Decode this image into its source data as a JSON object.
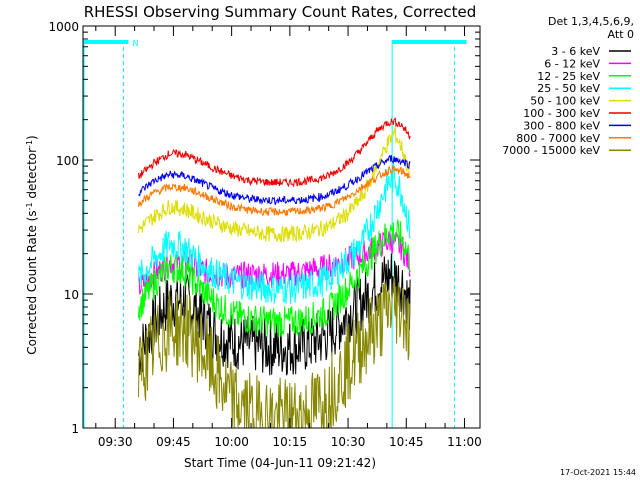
{
  "chart_data": {
    "type": "line",
    "title": "RHESSI Observing Summary Count Rates, Corrected",
    "xlabel": "Start Time (04-Jun-11 09:21:42)",
    "ylabel_main": "Corrected Count Rate (s",
    "ylabel_sup1": "-1",
    "ylabel_mid": " detector",
    "ylabel_sup2": "-1",
    "ylabel_end": ")",
    "yscale": "log",
    "xlim": [
      "09:21:42",
      "11:04:00"
    ],
    "ylim": [
      1,
      1000
    ],
    "x_ticks": [
      "09:30",
      "09:45",
      "10:00",
      "10:15",
      "10:30",
      "10:45",
      "11:00"
    ],
    "y_ticks": [
      "1",
      "10",
      "100",
      "1000"
    ],
    "legend_header": [
      "Det 1,3,4,5,6,9,",
      "Att 0"
    ],
    "legend_position": "right",
    "timestamp": "17-Oct-2021 15:44",
    "night_marker": "N",
    "data_start": "09:36:00",
    "data_end": "10:46:00",
    "series": [
      {
        "name": "3 - 6 keV",
        "color": "#000000",
        "x": [
          "09:36",
          "09:40",
          "09:44",
          "09:48",
          "09:52",
          "09:56",
          "10:00",
          "10:05",
          "10:10",
          "10:15",
          "10:20",
          "10:25",
          "10:30",
          "10:34",
          "10:38",
          "10:41",
          "10:44",
          "10:46"
        ],
        "values": [
          3.5,
          6,
          9,
          9,
          7,
          5,
          4.5,
          4.2,
          4,
          4,
          4.2,
          5,
          7,
          9,
          12,
          14,
          12,
          8
        ],
        "noise": 0.22
      },
      {
        "name": "6 - 12 keV",
        "color": "#ff00ff",
        "x": [
          "09:36",
          "09:40",
          "09:44",
          "09:48",
          "09:52",
          "09:56",
          "10:00",
          "10:05",
          "10:10",
          "10:15",
          "10:20",
          "10:25",
          "10:30",
          "10:34",
          "10:38",
          "10:41",
          "10:44",
          "10:46"
        ],
        "values": [
          11,
          14,
          17,
          17,
          15,
          14,
          13.5,
          14,
          14,
          14,
          15,
          16,
          18,
          20,
          23,
          25,
          22,
          16
        ],
        "noise": 0.1
      },
      {
        "name": "12 - 25 keV",
        "color": "#00ff00",
        "x": [
          "09:36",
          "09:40",
          "09:44",
          "09:48",
          "09:52",
          "09:56",
          "10:00",
          "10:05",
          "10:10",
          "10:15",
          "10:20",
          "10:25",
          "10:30",
          "10:34",
          "10:38",
          "10:41",
          "10:44",
          "10:46"
        ],
        "values": [
          8,
          12,
          16,
          15,
          11,
          8.5,
          7,
          6.5,
          6.2,
          6.2,
          6.5,
          7.5,
          11,
          16,
          24,
          30,
          26,
          18
        ],
        "noise": 0.12
      },
      {
        "name": "25 - 50 keV",
        "color": "#00ffff",
        "x": [
          "09:36",
          "09:40",
          "09:44",
          "09:48",
          "09:52",
          "09:56",
          "10:00",
          "10:05",
          "10:10",
          "10:15",
          "10:20",
          "10:25",
          "10:30",
          "10:34",
          "10:37",
          "10:40",
          "10:42",
          "10:44",
          "10:46"
        ],
        "values": [
          13,
          18,
          24,
          22,
          17,
          14,
          12.5,
          11.5,
          11,
          11,
          11.5,
          13,
          18,
          25,
          40,
          65,
          75,
          55,
          30
        ],
        "noise": 0.12
      },
      {
        "name": "50 - 100 keV",
        "color": "#dddd00",
        "x": [
          "09:36",
          "09:40",
          "09:44",
          "09:48",
          "09:52",
          "09:56",
          "10:00",
          "10:05",
          "10:10",
          "10:15",
          "10:20",
          "10:25",
          "10:30",
          "10:34",
          "10:37",
          "10:40",
          "10:42",
          "10:44",
          "10:46"
        ],
        "values": [
          30,
          38,
          45,
          43,
          38,
          34,
          31,
          29,
          28,
          28,
          29,
          32,
          40,
          55,
          85,
          130,
          160,
          120,
          75
        ],
        "noise": 0.06
      },
      {
        "name": "100 - 300 keV",
        "color": "#ee0000",
        "x": [
          "09:36",
          "09:40",
          "09:44",
          "09:48",
          "09:52",
          "09:56",
          "10:00",
          "10:05",
          "10:10",
          "10:15",
          "10:20",
          "10:25",
          "10:30",
          "10:34",
          "10:37",
          "10:40",
          "10:42",
          "10:44",
          "10:46"
        ],
        "values": [
          75,
          95,
          112,
          110,
          97,
          85,
          76,
          70,
          68,
          68,
          70,
          76,
          95,
          125,
          160,
          190,
          195,
          180,
          150
        ],
        "noise": 0.03
      },
      {
        "name": "300 - 800 keV",
        "color": "#0000ee",
        "x": [
          "09:36",
          "09:40",
          "09:44",
          "09:48",
          "09:52",
          "09:56",
          "10:00",
          "10:05",
          "10:10",
          "10:15",
          "10:20",
          "10:25",
          "10:30",
          "10:34",
          "10:38",
          "10:41",
          "10:44",
          "10:46"
        ],
        "values": [
          57,
          70,
          78,
          76,
          68,
          60,
          55,
          51,
          50,
          50,
          51,
          55,
          65,
          78,
          92,
          103,
          98,
          92
        ],
        "noise": 0.03
      },
      {
        "name": "800 - 7000 keV",
        "color": "#ff7700",
        "x": [
          "09:36",
          "09:40",
          "09:44",
          "09:48",
          "09:52",
          "09:56",
          "10:00",
          "10:05",
          "10:10",
          "10:15",
          "10:20",
          "10:25",
          "10:30",
          "10:34",
          "10:38",
          "10:41",
          "10:44",
          "10:46"
        ],
        "values": [
          47,
          57,
          63,
          62,
          56,
          50,
          45,
          42,
          41,
          41,
          42,
          45,
          53,
          64,
          76,
          85,
          82,
          75
        ],
        "noise": 0.03
      },
      {
        "name": "7000 - 15000 keV",
        "color": "#888800",
        "x": [
          "09:36",
          "09:40",
          "09:44",
          "09:48",
          "09:52",
          "09:56",
          "10:00",
          "10:05",
          "10:10",
          "10:15",
          "10:20",
          "10:25",
          "10:30",
          "10:34",
          "10:38",
          "10:41",
          "10:44",
          "10:46"
        ],
        "values": [
          2.5,
          4,
          5.5,
          5.5,
          4,
          2.5,
          1.6,
          1.3,
          1.2,
          1.2,
          1.3,
          1.8,
          3,
          4.5,
          6,
          8,
          8,
          5
        ],
        "noise": 0.3
      }
    ]
  }
}
